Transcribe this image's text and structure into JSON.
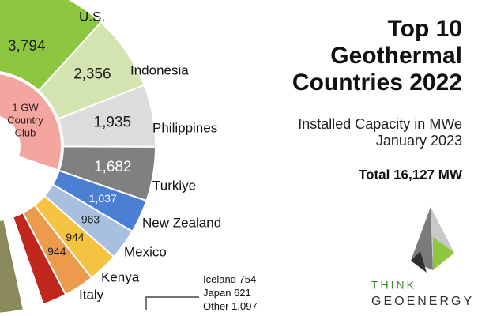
{
  "chart_data": {
    "type": "donut",
    "title_lines": [
      "Top 10",
      "Geothermal",
      "Countries 2022"
    ],
    "subtitle_lines": [
      "Installed Capacity in MWe",
      "January 2023"
    ],
    "total_label": "Total 16,127 MW",
    "inner_label_lines": [
      "1 GW",
      "Country",
      "Club"
    ],
    "categories": [
      "U.S.",
      "Indonesia",
      "Philippines",
      "Turkiye",
      "New Zealand",
      "Mexico",
      "Kenya",
      "Italy",
      "Iceland",
      "Japan",
      "Other"
    ],
    "values": [
      3794,
      2356,
      1935,
      1682,
      1037,
      963,
      944,
      944,
      754,
      621,
      1097
    ],
    "value_labels": [
      "3,794",
      "2,356",
      "1,935",
      "1,682",
      "1,037",
      "963",
      "944",
      "944",
      "754",
      "621",
      "1,097"
    ],
    "colors": [
      "#8dc63f",
      "#d4e4b0",
      "#dcdcdc",
      "#808080",
      "#4a7fd4",
      "#a9bfe0",
      "#f5c342",
      "#ec9a4c",
      "#c0281e",
      "#ffffff",
      "#8b8a5c"
    ],
    "brand": [
      "THINK",
      "GEOENERGY"
    ]
  }
}
